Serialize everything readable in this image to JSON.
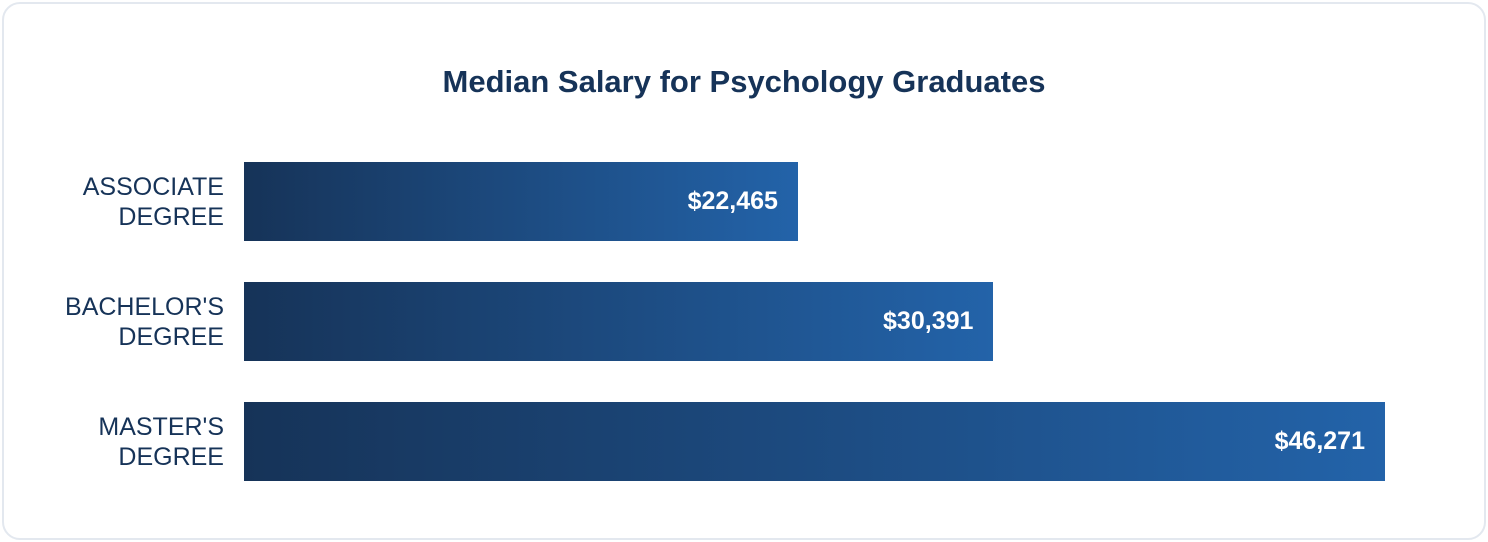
{
  "chart_data": {
    "type": "bar",
    "orientation": "horizontal",
    "title": "Median Salary for Psychology Graduates",
    "categories": [
      "ASSOCIATE DEGREE",
      "BACHELOR'S DEGREE",
      "MASTER'S DEGREE"
    ],
    "values": [
      22465,
      30391,
      46271
    ],
    "value_labels": [
      "$22,465",
      "$30,391",
      "$46,271"
    ],
    "gradient": [
      "#163358",
      "#2363a9"
    ]
  }
}
